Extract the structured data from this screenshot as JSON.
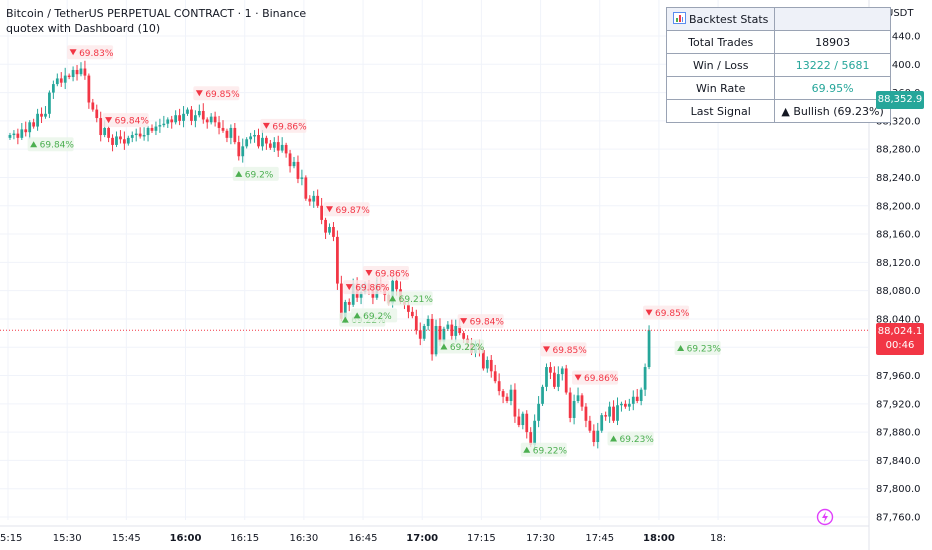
{
  "header": {
    "symbol_title": "Bitcoin / TetherUS PERPETUAL CONTRACT · 1 · Binance",
    "indicator_title": "quotex with Dashboard (10)"
  },
  "stats": {
    "title": "Backtest Stats",
    "title_icon": "bar-chart-icon",
    "rows": [
      {
        "label": "Total Trades",
        "value": "18903"
      },
      {
        "label": "Win / Loss",
        "value": "13222 / 5681"
      },
      {
        "label": "Win Rate",
        "value": "69.95%"
      },
      {
        "label": "Last Signal",
        "value": "▲ Bullish (69.23%)"
      }
    ]
  },
  "price_scale": {
    "currency": "USDT",
    "badge_high": "88,352.9",
    "badge_last_price": "88,024.1",
    "badge_last_countdown": "00:46"
  },
  "colors": {
    "up": "#26a69a",
    "down": "#f23645",
    "bull_signal": "#4caf50",
    "bear_signal": "#f23645",
    "grid": "#f0f3fa"
  },
  "chart_data": {
    "type": "candlestick",
    "xlim": [
      0,
      218
    ],
    "ylim": [
      87740,
      88460
    ],
    "yticks": [
      {
        "value": 88440,
        "label": "88,440.0"
      },
      {
        "value": 88400,
        "label": "88,400.0"
      },
      {
        "value": 88360,
        "label": "88,360.0"
      },
      {
        "value": 88320,
        "label": "88,320.0"
      },
      {
        "value": 88280,
        "label": "88,280.0"
      },
      {
        "value": 88240,
        "label": "88,240.0"
      },
      {
        "value": 88200,
        "label": "88,200.0"
      },
      {
        "value": 88160,
        "label": "88,160.0"
      },
      {
        "value": 88120,
        "label": "88,120.0"
      },
      {
        "value": 88080,
        "label": "88,080.0"
      },
      {
        "value": 88040,
        "label": "88,040.0"
      },
      {
        "value": 88000,
        "label": "88,000.0"
      },
      {
        "value": 87960,
        "label": "87,960.0"
      },
      {
        "value": 87920,
        "label": "87,920.0"
      },
      {
        "value": 87880,
        "label": "87,880.0"
      },
      {
        "value": 87840,
        "label": "87,840.0"
      },
      {
        "value": 87800,
        "label": "87,800.0"
      },
      {
        "value": 87760,
        "label": "87,760.0"
      }
    ],
    "xticks": [
      {
        "label": "15:15",
        "i": 0,
        "bold": false
      },
      {
        "label": "15:30",
        "i": 15,
        "bold": false
      },
      {
        "label": "15:45",
        "i": 30,
        "bold": false
      },
      {
        "label": "16:00",
        "i": 45,
        "bold": true
      },
      {
        "label": "16:15",
        "i": 60,
        "bold": false
      },
      {
        "label": "16:30",
        "i": 75,
        "bold": false
      },
      {
        "label": "16:45",
        "i": 90,
        "bold": false
      },
      {
        "label": "17:00",
        "i": 105,
        "bold": true
      },
      {
        "label": "17:15",
        "i": 120,
        "bold": false
      },
      {
        "label": "17:30",
        "i": 135,
        "bold": false
      },
      {
        "label": "17:45",
        "i": 150,
        "bold": false
      },
      {
        "label": "18:00",
        "i": 165,
        "bold": true
      },
      {
        "label": "18:",
        "i": 180,
        "bold": false
      }
    ],
    "last_price": 88024.1,
    "candles_close": [
      88300,
      88302,
      88296,
      88308,
      88304,
      88318,
      88312,
      88330,
      88326,
      88330,
      88360,
      88372,
      88380,
      88374,
      88384,
      88382,
      88392,
      88386,
      88394,
      88384,
      88346,
      88336,
      88324,
      88300,
      88310,
      88296,
      88286,
      88298,
      88294,
      88288,
      88296,
      88300,
      88302,
      88298,
      88300,
      88310,
      88306,
      88312,
      88314,
      88316,
      88322,
      88318,
      88328,
      88320,
      88330,
      88336,
      88320,
      88328,
      88334,
      88322,
      88318,
      88326,
      88318,
      88310,
      88306,
      88296,
      88310,
      88290,
      88270,
      88284,
      88294,
      88298,
      88300,
      88284,
      88296,
      88288,
      88282,
      88290,
      88278,
      88286,
      88274,
      88256,
      88262,
      88238,
      88240,
      88210,
      88206,
      88214,
      88200,
      88180,
      88162,
      88170,
      88156,
      88090,
      88040,
      88064,
      88060,
      88090,
      88070,
      88078,
      88090,
      88080,
      88070,
      88090,
      88084,
      88074,
      88062,
      88094,
      88082,
      88064,
      88060,
      88050,
      88044,
      88024,
      88012,
      88030,
      88040,
      87990,
      88030,
      88008,
      88026,
      88032,
      88016,
      88030,
      88020,
      88012,
      88006,
      87992,
      88000,
      87996,
      87970,
      87982,
      87966,
      87952,
      87938,
      87930,
      87924,
      87940,
      87902,
      87890,
      87906,
      87880,
      87862,
      87896,
      87920,
      87944,
      87972,
      87964,
      87944,
      87962,
      87970,
      87936,
      87900,
      87924,
      87932,
      87916,
      87896,
      87882,
      87866,
      87882,
      87904,
      87902,
      87916,
      87896,
      87918,
      87920,
      87916,
      87920,
      87930,
      87924,
      87940,
      87972,
      88024
    ],
    "signals": [
      {
        "i": 6,
        "dir": "up",
        "label": "69.84%"
      },
      {
        "i": 16,
        "dir": "down",
        "label": "69.83%"
      },
      {
        "i": 25,
        "dir": "down",
        "label": "69.84%"
      },
      {
        "i": 48,
        "dir": "down",
        "label": "69.85%"
      },
      {
        "i": 65,
        "dir": "down",
        "label": "69.86%"
      },
      {
        "i": 58,
        "dir": "up",
        "label": "69.2%"
      },
      {
        "i": 81,
        "dir": "down",
        "label": "69.87%"
      },
      {
        "i": 86,
        "dir": "down",
        "label": "69.86%"
      },
      {
        "i": 85,
        "dir": "up",
        "label": "69.22%"
      },
      {
        "i": 91,
        "dir": "down",
        "label": "69.86%"
      },
      {
        "i": 88,
        "dir": "up",
        "label": "69.2%"
      },
      {
        "i": 97,
        "dir": "up",
        "label": "69.21%"
      },
      {
        "i": 115,
        "dir": "down",
        "label": "69.84%"
      },
      {
        "i": 110,
        "dir": "up",
        "label": "69.22%"
      },
      {
        "i": 136,
        "dir": "down",
        "label": "69.85%"
      },
      {
        "i": 144,
        "dir": "down",
        "label": "69.86%"
      },
      {
        "i": 131,
        "dir": "up",
        "label": "69.22%"
      },
      {
        "i": 162,
        "dir": "down",
        "label": "69.85%"
      },
      {
        "i": 153,
        "dir": "up",
        "label": "69.23%"
      },
      {
        "i": 170,
        "dir": "up",
        "label": "69.23%"
      }
    ]
  }
}
